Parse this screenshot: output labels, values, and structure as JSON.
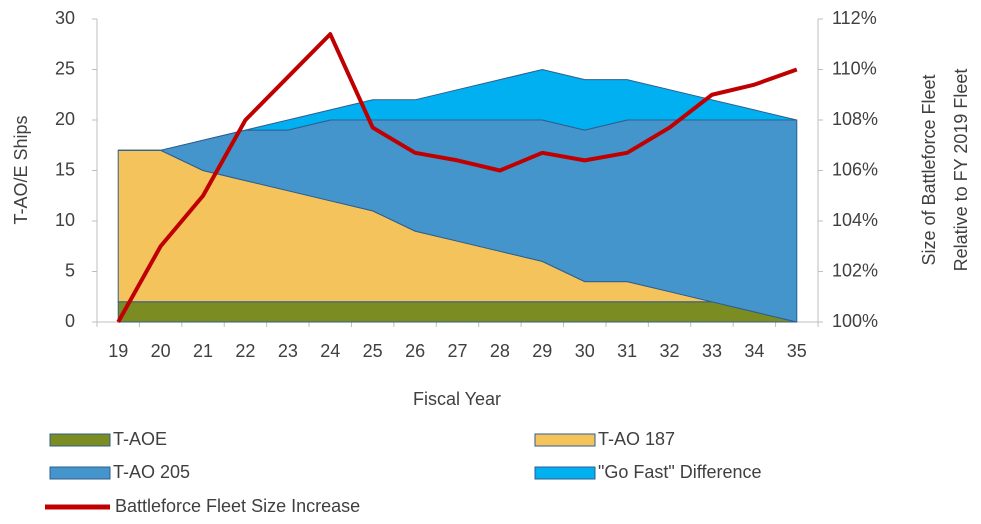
{
  "chart_data": {
    "type": "stacked-area-line",
    "x_label": "Fiscal Year",
    "y_label": "T-AO/E Ships",
    "y2_label": [
      "Size of Battleforce Fleet",
      "Relative to FY 2019 Fleet"
    ],
    "categories": [
      "19",
      "20",
      "21",
      "22",
      "23",
      "24",
      "25",
      "26",
      "27",
      "28",
      "29",
      "30",
      "31",
      "32",
      "33",
      "34",
      "35"
    ],
    "ylim": [
      0,
      30
    ],
    "yticks": [
      0,
      5,
      10,
      15,
      20,
      25,
      30
    ],
    "y2lim": [
      100,
      112
    ],
    "y2ticks": [
      {
        "value": 100,
        "label": "100%"
      },
      {
        "value": 102,
        "label": "102%"
      },
      {
        "value": 104,
        "label": "104%"
      },
      {
        "value": 106,
        "label": "106%"
      },
      {
        "value": 108,
        "label": "108%"
      },
      {
        "value": 110,
        "label": "110%"
      },
      {
        "value": 112,
        "label": "112%"
      }
    ],
    "series": [
      {
        "name": "T-AOE",
        "color": "#7b8c22",
        "values": [
          2,
          2,
          2,
          2,
          2,
          2,
          2,
          2,
          2,
          2,
          2,
          2,
          2,
          2,
          2,
          1,
          0
        ]
      },
      {
        "name": "T-AO 187",
        "color": "#f5c35c",
        "values": [
          15,
          15,
          13,
          12,
          11,
          10,
          9,
          7,
          6,
          5,
          4,
          2,
          2,
          1,
          0,
          0,
          0
        ]
      },
      {
        "name": "T-AO 205",
        "color": "#4495cc",
        "values": [
          0,
          0,
          3,
          5,
          6,
          8,
          9,
          11,
          12,
          13,
          14,
          15,
          16,
          17,
          18,
          19,
          20
        ]
      },
      {
        "name": "\"Go Fast\" Difference",
        "color": "#00b0f0",
        "values": [
          0,
          0,
          0,
          0,
          1,
          1,
          2,
          2,
          3,
          4,
          5,
          5,
          4,
          3,
          2,
          1,
          0
        ]
      },
      {
        "name": "Battleforce Fleet Size Increase",
        "color": "#c00000",
        "axis": "y2",
        "values": [
          100,
          103,
          105,
          108,
          109.7,
          111.4,
          107.7,
          106.7,
          106.4,
          106.0,
          106.7,
          106.4,
          106.7,
          107.7,
          109.0,
          109.4,
          110.0
        ]
      }
    ]
  }
}
